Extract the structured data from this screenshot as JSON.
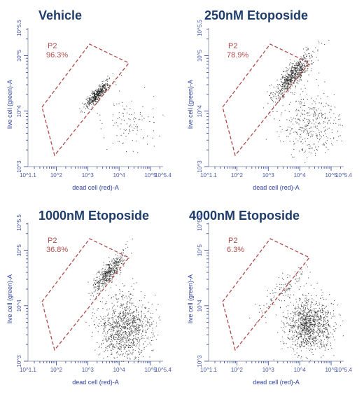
{
  "chart_data": [
    {
      "type": "scatter",
      "title": "Vehicle",
      "xlabel": "dead cell (red)-A",
      "ylabel": "live cell (green)-A",
      "x_scale": "log10",
      "y_scale": "log10",
      "xlim": [
        10,
        251189
      ],
      "ylim": [
        1000,
        316228
      ],
      "x_tick_labels": [
        "10^1.1",
        "10^2",
        "10^3",
        "10^4",
        "10^5",
        "10^5.4"
      ],
      "y_tick_labels": [
        "10^3",
        "10^4",
        "10^5",
        "10^5.5"
      ],
      "gate": {
        "name": "P2",
        "percent": "96.3%"
      },
      "populations": [
        {
          "name": "live",
          "center": [
            2000,
            20000
          ],
          "spread": [
            0.2,
            0.14
          ],
          "count": 420
        },
        {
          "name": "dead",
          "center": [
            25000,
            6000
          ],
          "spread": [
            0.45,
            0.25
          ],
          "count": 110
        }
      ]
    },
    {
      "type": "scatter",
      "title": "250nM Etoposide",
      "xlabel": "dead cell (red)-A",
      "ylabel": "live cell (green)-A",
      "x_scale": "log10",
      "y_scale": "log10",
      "xlim": [
        10,
        251189
      ],
      "ylim": [
        1000,
        316228
      ],
      "x_tick_labels": [
        "10^1.1",
        "10^2",
        "10^3",
        "10^4",
        "10^5",
        "10^5.4"
      ],
      "y_tick_labels": [
        "10^3",
        "10^4",
        "10^5",
        "10^5.5"
      ],
      "gate": {
        "name": "P2",
        "percent": "78.9%"
      },
      "populations": [
        {
          "name": "live",
          "center": [
            6000,
            45000
          ],
          "spread": [
            0.32,
            0.24
          ],
          "count": 650
        },
        {
          "name": "dead",
          "center": [
            20000,
            6000
          ],
          "spread": [
            0.5,
            0.3
          ],
          "count": 380
        }
      ]
    },
    {
      "type": "scatter",
      "title": "1000nM Etoposide",
      "xlabel": "dead cell (red)-A",
      "ylabel": "live cell (green)-A",
      "x_scale": "log10",
      "y_scale": "log10",
      "xlim": [
        10,
        251189
      ],
      "ylim": [
        1000,
        316228
      ],
      "x_tick_labels": [
        "10^1.1",
        "10^2",
        "10^3",
        "10^4",
        "10^5",
        "10^5.4"
      ],
      "y_tick_labels": [
        "10^3",
        "10^4",
        "10^5",
        "10^5.5"
      ],
      "gate": {
        "name": "P2",
        "percent": "36.8%"
      },
      "populations": [
        {
          "name": "live",
          "center": [
            4500,
            40000
          ],
          "spread": [
            0.26,
            0.2
          ],
          "count": 450
        },
        {
          "name": "dead",
          "center": [
            15000,
            4000
          ],
          "spread": [
            0.42,
            0.3
          ],
          "count": 1000
        }
      ]
    },
    {
      "type": "scatter",
      "title": "4000nM Etoposide",
      "xlabel": "dead cell (red)-A",
      "ylabel": "live cell (green)-A",
      "x_scale": "log10",
      "y_scale": "log10",
      "xlim": [
        10,
        251189
      ],
      "ylim": [
        1000,
        316228
      ],
      "x_tick_labels": [
        "10^1.1",
        "10^2",
        "10^3",
        "10^4",
        "10^5",
        "10^5.4"
      ],
      "y_tick_labels": [
        "10^3",
        "10^4",
        "10^5",
        "10^5.5"
      ],
      "gate": {
        "name": "P2",
        "percent": "6.3%"
      },
      "populations": [
        {
          "name": "live",
          "center": [
            3000,
            20000
          ],
          "spread": [
            0.35,
            0.25
          ],
          "count": 120
        },
        {
          "name": "dead",
          "center": [
            20000,
            4500
          ],
          "spread": [
            0.36,
            0.24
          ],
          "count": 1050
        }
      ]
    }
  ],
  "colors": {
    "title": "#1f3d6b",
    "axis": "#2b3f9e",
    "gate": "#b04a4a",
    "dot": "#111111",
    "frame": "#9aa0b8"
  }
}
